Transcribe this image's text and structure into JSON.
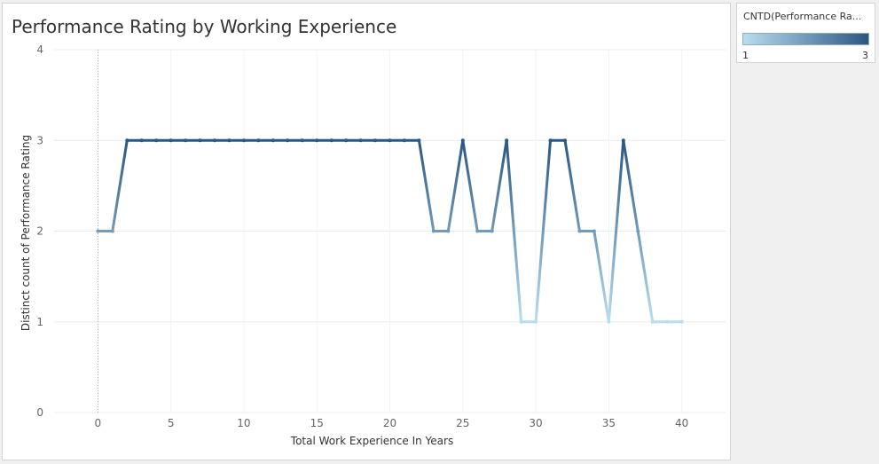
{
  "chart_data": {
    "type": "line",
    "title": "Performance Rating by Working Experience",
    "xlabel": "Total Work Experience In Years",
    "ylabel": "Distinct count of Performance Rating",
    "xlim": [
      -3,
      43
    ],
    "ylim": [
      0,
      4
    ],
    "xticks": [
      0,
      5,
      10,
      15,
      20,
      25,
      30,
      35,
      40
    ],
    "yticks": [
      0,
      1,
      2,
      3,
      4
    ],
    "grid": true,
    "x": [
      0,
      1,
      2,
      3,
      4,
      5,
      6,
      7,
      8,
      9,
      10,
      11,
      12,
      13,
      14,
      15,
      16,
      17,
      18,
      19,
      20,
      21,
      22,
      23,
      24,
      25,
      26,
      27,
      28,
      29,
      30,
      31,
      32,
      33,
      34,
      35,
      36,
      37,
      38,
      39,
      40
    ],
    "values": [
      2,
      2,
      3,
      3,
      3,
      3,
      3,
      3,
      3,
      3,
      3,
      3,
      3,
      3,
      3,
      3,
      3,
      3,
      3,
      3,
      3,
      3,
      3,
      2,
      2,
      3,
      2,
      2,
      3,
      1,
      1,
      3,
      3,
      2,
      2,
      1,
      3,
      2,
      1,
      1,
      1
    ],
    "color_scale": {
      "field": "CNTD(Performance Ra...",
      "min": 1,
      "max": 3,
      "color_min": "#b9ddf0",
      "color_max": "#2a5783"
    },
    "legend_position": "top-right"
  }
}
